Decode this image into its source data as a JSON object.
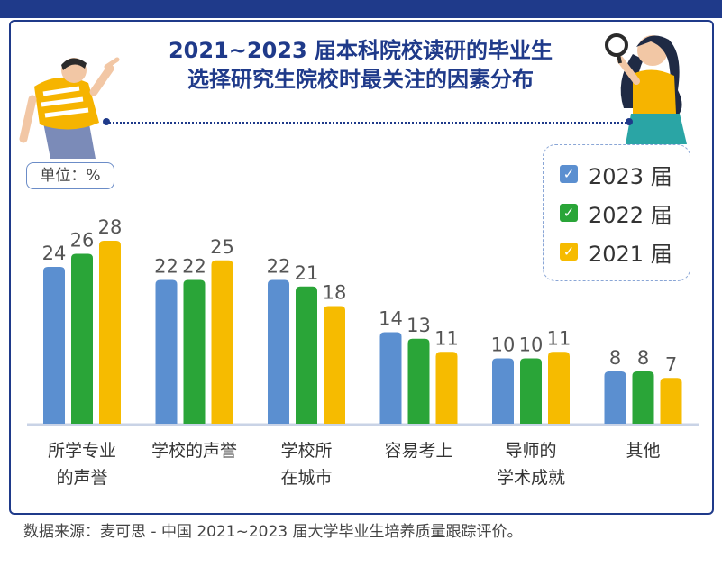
{
  "title_line1": "2021~2023 届本科院校读研的毕业生",
  "title_line2": "选择研究生院校时最关注的因素分布",
  "unit": "单位：%",
  "legend": [
    {
      "label": "2023 届",
      "color": "#5b8fd0"
    },
    {
      "label": "2022 届",
      "color": "#2aa538"
    },
    {
      "label": "2021 届",
      "color": "#f6bb00"
    }
  ],
  "source": "数据来源：麦可思 - 中国 2021~2023 届大学毕业生培养质量跟踪评价。",
  "chart_data": {
    "type": "bar",
    "categories": [
      [
        "所学专业",
        "的声誉"
      ],
      [
        "学校的声誉"
      ],
      [
        "学校所",
        "在城市"
      ],
      [
        "容易考上"
      ],
      [
        "导师的",
        "学术成就"
      ],
      [
        "其他"
      ]
    ],
    "series": [
      {
        "name": "2023 届",
        "color": "#5b8fd0",
        "values": [
          24,
          22,
          22,
          14,
          10,
          8
        ]
      },
      {
        "name": "2022 届",
        "color": "#2aa538",
        "values": [
          26,
          22,
          21,
          13,
          10,
          8
        ]
      },
      {
        "name": "2021 届",
        "color": "#f6bb00",
        "values": [
          28,
          25,
          18,
          11,
          11,
          7
        ]
      }
    ],
    "ylim": [
      0,
      30
    ],
    "grid": false,
    "legend_position": "top-right",
    "xlabel": "",
    "ylabel": ""
  }
}
